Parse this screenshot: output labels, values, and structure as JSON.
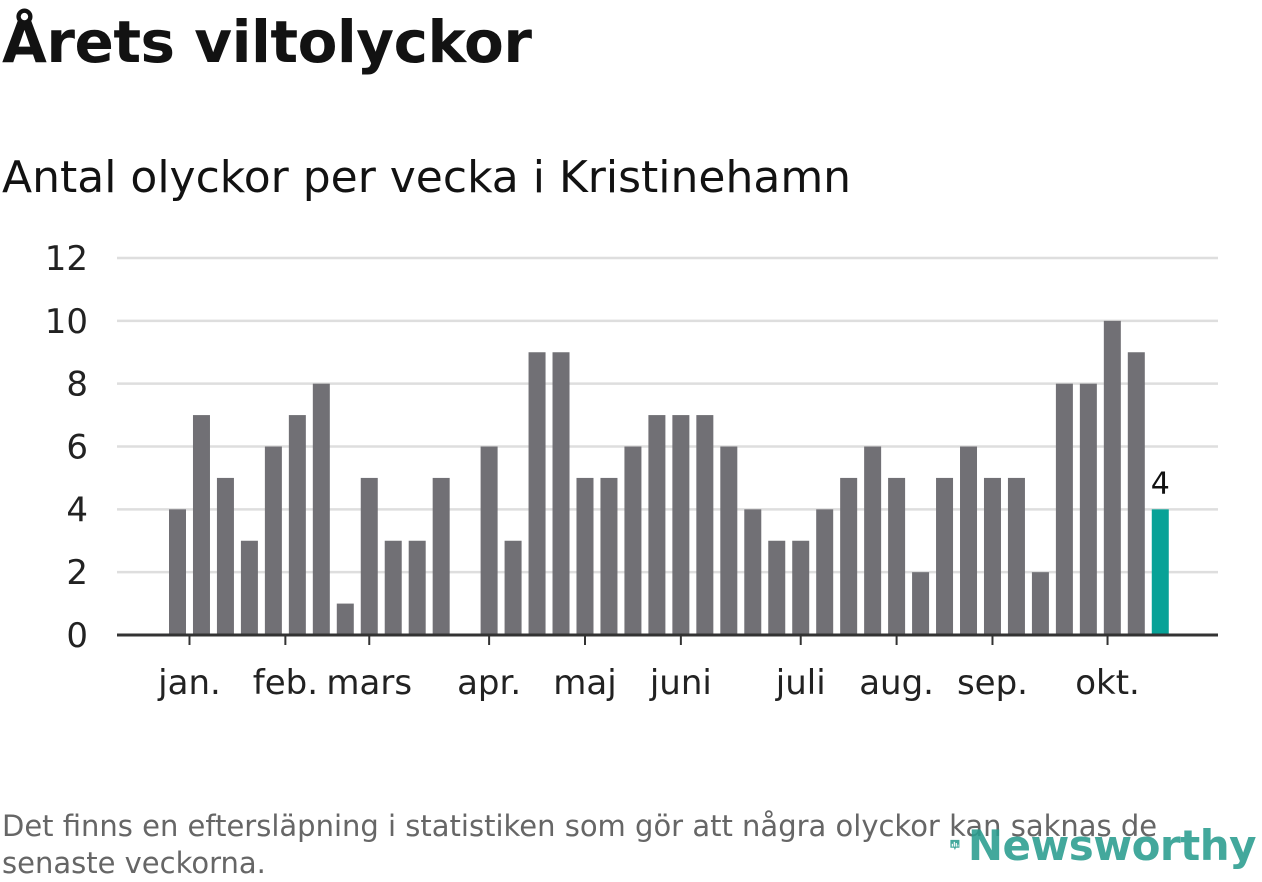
{
  "title": "Årets viltolyckor",
  "subtitle": "Antal olyckor per vecka i Kristinehamn",
  "footnote": "Det finns en eftersläpning i statistiken som gör att några olyckor kan saknas de senaste veckorna.",
  "logo_text": "Newsworthy",
  "colors": {
    "bar": "#717075",
    "highlight": "#07A297",
    "grid": "#dedede",
    "axis": "#333333",
    "logo": "#2a9d8f"
  },
  "chart_data": {
    "type": "bar",
    "title": "Antal olyckor per vecka i Kristinehamn",
    "xlabel": "",
    "ylabel": "",
    "ylim": [
      0,
      12
    ],
    "yticks": [
      "0",
      "2",
      "4",
      "6",
      "8",
      "10",
      "12"
    ],
    "weeks": [
      1,
      2,
      3,
      4,
      5,
      6,
      7,
      8,
      9,
      10,
      11,
      12,
      13,
      14,
      15,
      16,
      17,
      18,
      19,
      20,
      21,
      22,
      23,
      24,
      25,
      26,
      27,
      28,
      29,
      30,
      31,
      32,
      33,
      34,
      35,
      36,
      37,
      38,
      39,
      40,
      41,
      42
    ],
    "values": [
      4,
      7,
      5,
      3,
      6,
      7,
      8,
      1,
      5,
      3,
      3,
      5,
      0,
      6,
      3,
      9,
      9,
      5,
      5,
      6,
      7,
      7,
      7,
      6,
      4,
      3,
      3,
      4,
      5,
      6,
      5,
      2,
      5,
      6,
      5,
      5,
      2,
      8,
      8,
      10,
      9,
      4
    ],
    "highlight_index": 41,
    "highlight_label": "4",
    "month_labels": [
      {
        "label": "jan.",
        "week": 1.5
      },
      {
        "label": "feb.",
        "week": 5.5
      },
      {
        "label": "mars",
        "week": 9
      },
      {
        "label": "apr.",
        "week": 14
      },
      {
        "label": "maj",
        "week": 18
      },
      {
        "label": "juni",
        "week": 22
      },
      {
        "label": "juli",
        "week": 27
      },
      {
        "label": "aug.",
        "week": 31
      },
      {
        "label": "sep.",
        "week": 35
      },
      {
        "label": "okt.",
        "week": 39.8
      }
    ]
  }
}
